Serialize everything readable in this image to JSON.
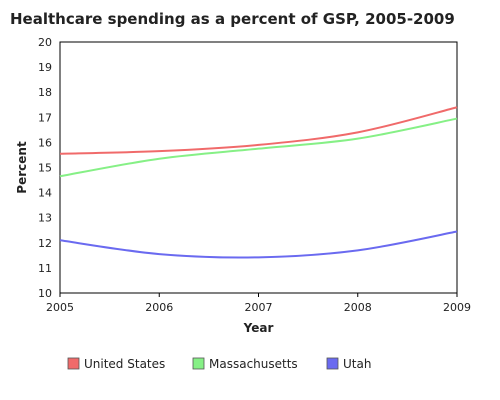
{
  "chart_data": {
    "type": "line",
    "title": "Healthcare spending as a percent of GSP, 2005-2009",
    "xlabel": "Year",
    "ylabel": "Percent",
    "x": [
      2005,
      2006,
      2007,
      2008,
      2009
    ],
    "xlim": [
      2005,
      2009
    ],
    "ylim": [
      10,
      20
    ],
    "yticks": [
      10,
      11,
      12,
      13,
      14,
      15,
      16,
      17,
      18,
      19,
      20
    ],
    "grid": false,
    "legend_position": "bottom",
    "series": [
      {
        "name": "United States",
        "color": "#f06a6a",
        "values": [
          15.55,
          15.65,
          15.9,
          16.4,
          17.4
        ]
      },
      {
        "name": "Massachusetts",
        "color": "#86f086",
        "values": [
          14.65,
          15.35,
          15.75,
          16.15,
          16.95
        ]
      },
      {
        "name": "Utah",
        "color": "#6a6af0",
        "values": [
          12.1,
          11.55,
          11.42,
          11.7,
          12.45
        ]
      }
    ]
  }
}
